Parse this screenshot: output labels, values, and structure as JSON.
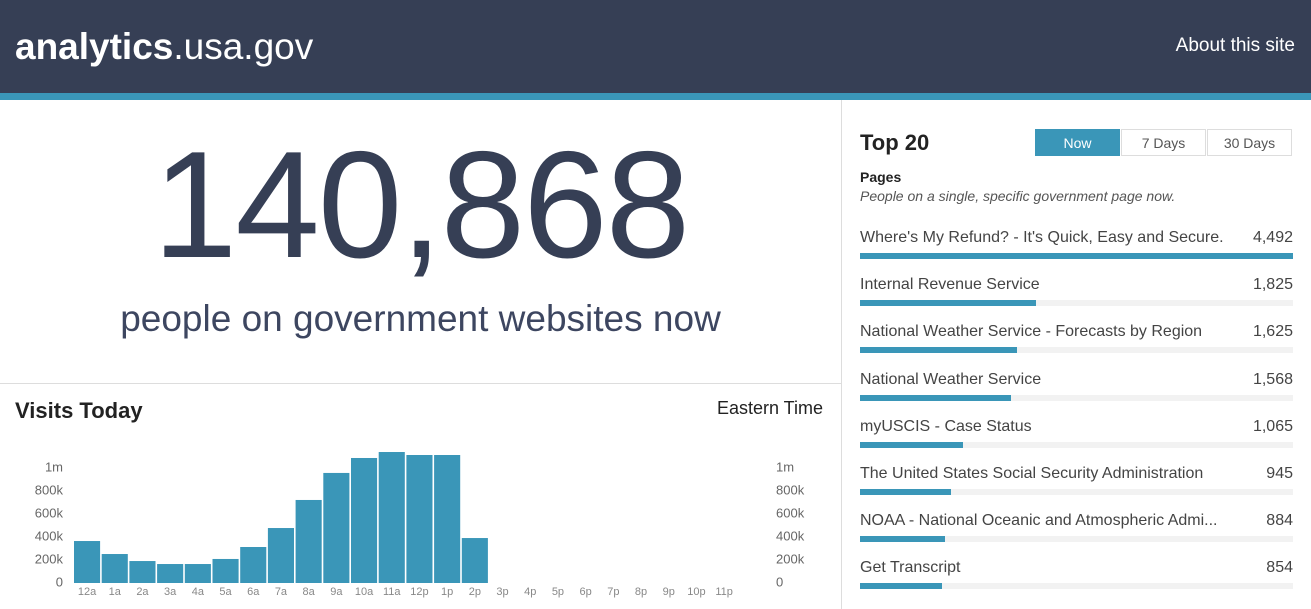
{
  "header": {
    "logo_bold": "analytics",
    "logo_rest": ".usa.gov",
    "about": "About this site"
  },
  "hero": {
    "count": "140,868",
    "caption": "people on government websites now"
  },
  "visits_chart": {
    "type": "bar",
    "title": "Visits Today",
    "subtitle": "Eastern Time",
    "categories": [
      "12a",
      "1a",
      "2a",
      "3a",
      "4a",
      "5a",
      "6a",
      "7a",
      "8a",
      "9a",
      "10a",
      "11a",
      "12p",
      "1p",
      "2p",
      "3p",
      "4p",
      "5p",
      "6p",
      "7p",
      "8p",
      "9p",
      "10p",
      "11p"
    ],
    "values": [
      365000,
      252000,
      191000,
      165000,
      165000,
      209000,
      313000,
      478000,
      722000,
      957000,
      1087000,
      1139000,
      1113000,
      1113000,
      391000,
      null,
      null,
      null,
      null,
      null,
      null,
      null,
      null,
      null
    ],
    "color": "#3a96b8",
    "ylim": [
      0,
      1150000
    ],
    "yticks": [
      0,
      {
        "value": 200000,
        "label": "200k"
      },
      {
        "value": 400000,
        "label": "400k"
      },
      {
        "value": 600000,
        "label": "600k"
      },
      {
        "value": 800000,
        "label": "800k"
      },
      {
        "value": 1000000,
        "label": "1m"
      }
    ]
  },
  "top_pages": {
    "title": "Top 20",
    "tabs": [
      "Now",
      "7 Days",
      "30 Days"
    ],
    "heading": "Pages",
    "description": "People on a single, specific government page now.",
    "categories": [
      "Where's My Refund? - It's Quick, Easy and Secure.",
      "Internal Revenue Service",
      "National Weather Service - Forecasts by Region",
      "National Weather Service",
      "myUSCIS - Case Status",
      "The United States Social Security Administration",
      "NOAA - National Oceanic and Atmospheric Admi...",
      "Get Transcript"
    ],
    "values": [
      4492,
      1825,
      1625,
      1568,
      1065,
      945,
      884,
      854
    ],
    "value_labels": [
      "4,492",
      "1,825",
      "1,625",
      "1,568",
      "1,065",
      "945",
      "884",
      "854"
    ],
    "color": "#3a96b8"
  }
}
